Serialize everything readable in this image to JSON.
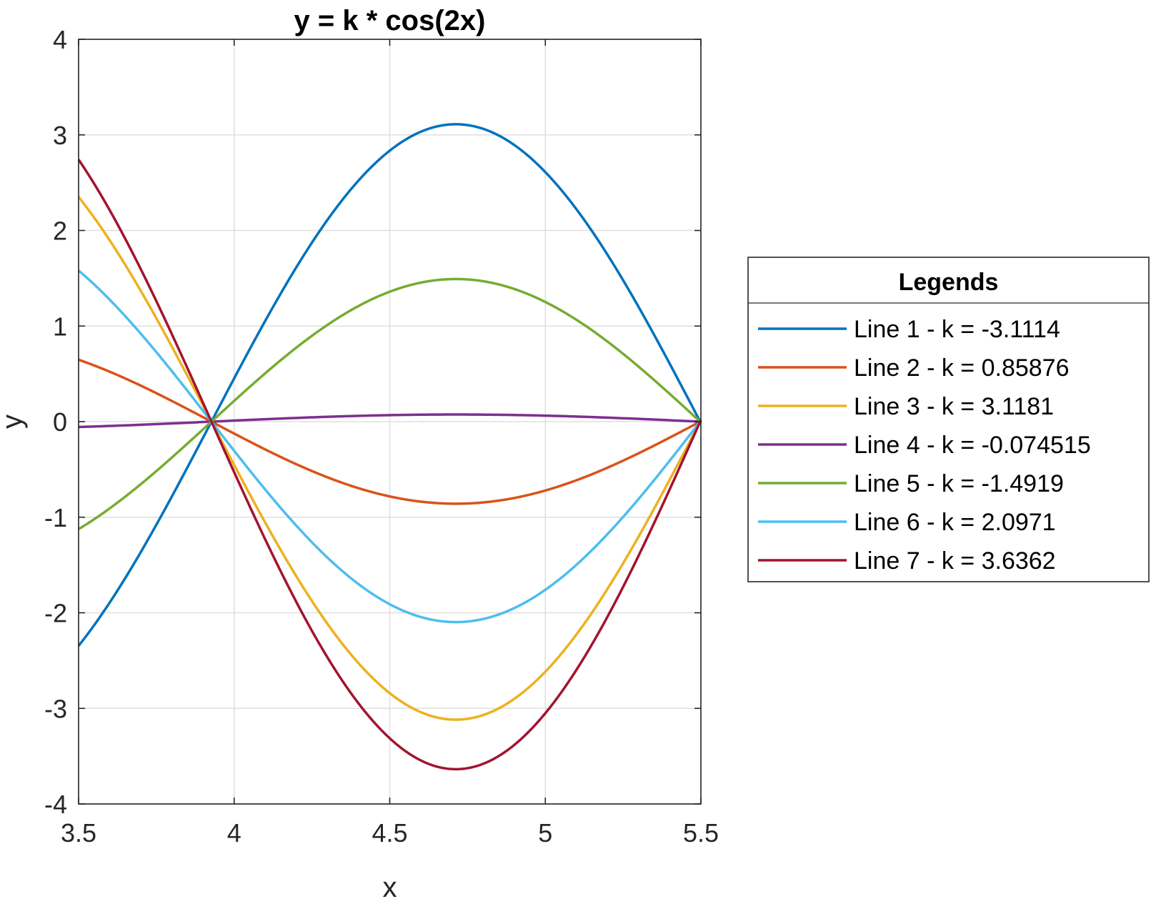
{
  "chart_data": {
    "type": "line",
    "title": "y = k * cos(2x)",
    "xlabel": "x",
    "ylabel": "y",
    "xlim": [
      3.5,
      5.5
    ],
    "ylim": [
      -4,
      4
    ],
    "xticks": [
      "3.5",
      "4",
      "4.5",
      "5",
      "5.5"
    ],
    "yticks": [
      "-4",
      "-3",
      "-2",
      "-1",
      "0",
      "1",
      "2",
      "3",
      "4"
    ],
    "grid": true,
    "legend": {
      "title": "Legends",
      "placement": "outside-right"
    },
    "series": [
      {
        "name": "Line 1 - k = -3.1114",
        "k": -3.1114,
        "color": "#0072BD"
      },
      {
        "name": "Line 2 - k = 0.85876",
        "k": 0.85876,
        "color": "#D95319"
      },
      {
        "name": "Line 3 - k = 3.1181",
        "k": 3.1181,
        "color": "#EDB120"
      },
      {
        "name": "Line 4 - k = -0.074515",
        "k": -0.074515,
        "color": "#7E2F8E"
      },
      {
        "name": "Line 5 - k = -1.4919",
        "k": -1.4919,
        "color": "#77AC30"
      },
      {
        "name": "Line 6 - k = 2.0971",
        "k": 2.0971,
        "color": "#4DBEEE"
      },
      {
        "name": "Line 7 - k = 3.6362",
        "k": 3.6362,
        "color": "#A2142F"
      }
    ]
  }
}
